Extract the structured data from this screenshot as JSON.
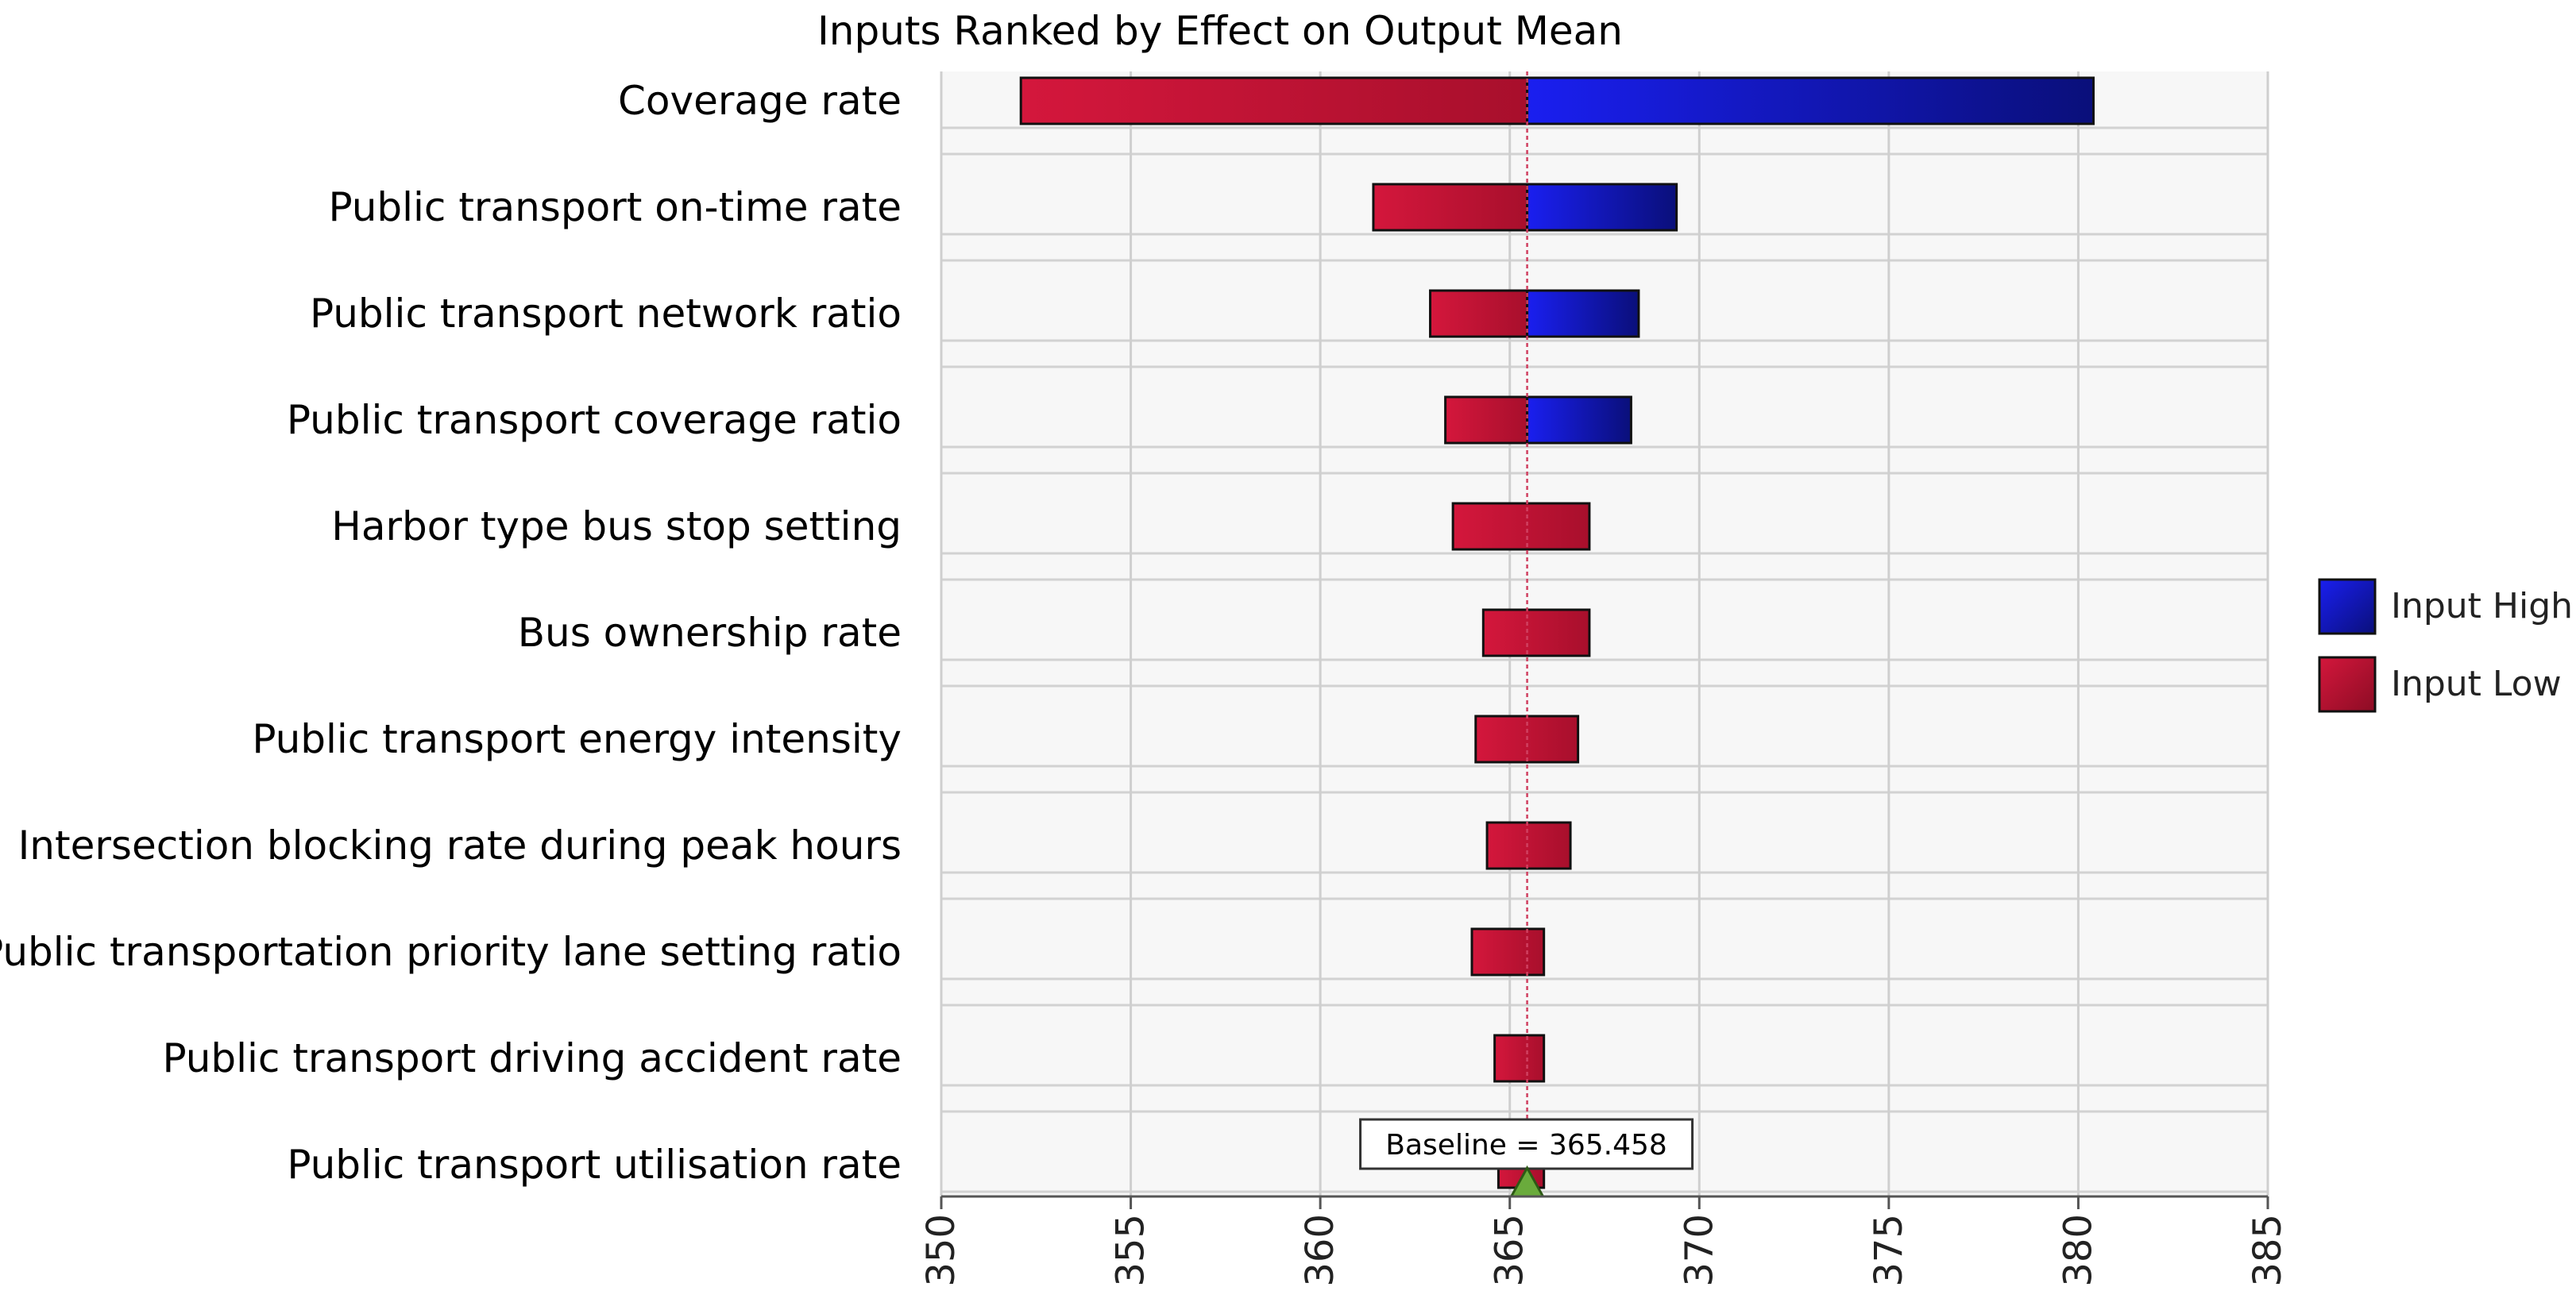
{
  "chart_data": {
    "type": "bar",
    "subtype": "tornado",
    "title": "Inputs Ranked by Effect on Output Mean",
    "xlabel": "",
    "ylabel": "",
    "xlim": [
      350,
      385
    ],
    "x_ticks": [
      350,
      355,
      360,
      365,
      370,
      375,
      380,
      385
    ],
    "tick_labels": [
      "350",
      "355",
      "360",
      "365",
      "370",
      "375",
      "380",
      "385"
    ],
    "baseline": 365.458,
    "baseline_label": "Baseline = 365.458",
    "grid": true,
    "legend_position": "right",
    "categories": [
      "Coverage rate",
      "Public transport on-time rate",
      "Public transport network ratio",
      "Public transport coverage ratio",
      "Harbor type bus stop setting",
      "Bus ownership rate",
      "Public transport energy intensity",
      "Intersection blocking rate during peak hours",
      "Public transportation priority lane setting ratio",
      "Public transport driving accident rate",
      "Public transport utilisation rate"
    ],
    "series": [
      {
        "name": "Input Low",
        "color": "#c8102e",
        "values": [
          352.1,
          361.4,
          362.9,
          363.3,
          363.5,
          364.3,
          364.1,
          364.4,
          364.0,
          364.6,
          364.7
        ]
      },
      {
        "name": "Input High",
        "color": "#0a12b8",
        "values": [
          380.4,
          369.4,
          368.4,
          368.2,
          367.1,
          367.1,
          366.8,
          366.6,
          365.9,
          365.9,
          365.9
        ]
      }
    ],
    "legend": [
      "Input High",
      "Input Low"
    ]
  }
}
